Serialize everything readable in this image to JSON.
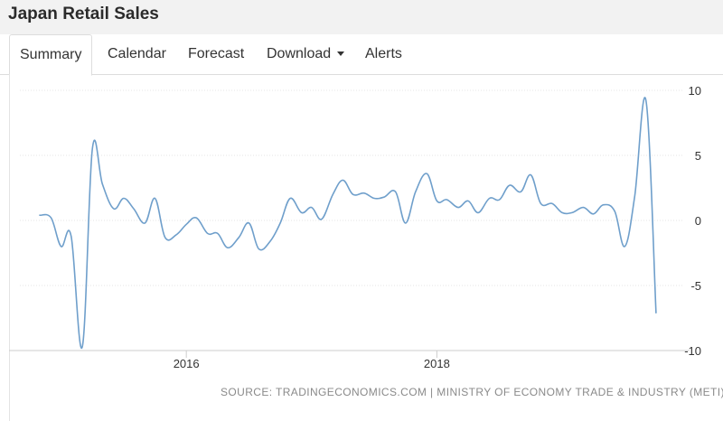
{
  "header": {
    "title": "Japan Retail Sales"
  },
  "tabs": [
    {
      "label": "Summary",
      "active": true
    },
    {
      "label": "Calendar"
    },
    {
      "label": "Forecast"
    },
    {
      "label": "Download",
      "has_dropdown": true
    },
    {
      "label": "Alerts"
    }
  ],
  "source_text": "SOURCE: TRADINGECONOMICS.COM | MINISTRY OF ECONOMY TRADE & INDUSTRY (METI)",
  "colors": {
    "line": "#6f9fcb",
    "grid": "#e6e6e6",
    "axis": "#cccccc",
    "header_bg": "#f2f2f2"
  },
  "chart_data": {
    "type": "line",
    "title": "",
    "xlabel": "",
    "ylabel": "",
    "ylim": [
      -10,
      10
    ],
    "y_ticks": [
      10,
      5,
      0,
      -5,
      -10
    ],
    "y_tick_labels": [
      "10",
      "5",
      "0",
      "-5",
      "-10"
    ],
    "x_range": [
      2014.83,
      2019.83
    ],
    "x_ticks": [
      2016,
      2018
    ],
    "x_tick_labels": [
      "2016",
      "2018"
    ],
    "grid": "horizontal dotted",
    "legend": "none",
    "series": [
      {
        "points": [
          [
            2014.83,
            0.4
          ],
          [
            2014.92,
            0.2
          ],
          [
            2015.0,
            -2.0
          ],
          [
            2015.08,
            -1.2
          ],
          [
            2015.17,
            -9.7
          ],
          [
            2015.25,
            5.5
          ],
          [
            2015.33,
            2.8
          ],
          [
            2015.42,
            0.9
          ],
          [
            2015.5,
            1.7
          ],
          [
            2015.58,
            0.9
          ],
          [
            2015.67,
            -0.2
          ],
          [
            2015.75,
            1.7
          ],
          [
            2015.83,
            -1.3
          ],
          [
            2015.92,
            -1.1
          ],
          [
            2016.0,
            -0.3
          ],
          [
            2016.08,
            0.2
          ],
          [
            2016.17,
            -1.0
          ],
          [
            2016.25,
            -1.0
          ],
          [
            2016.33,
            -2.1
          ],
          [
            2016.42,
            -1.3
          ],
          [
            2016.5,
            -0.2
          ],
          [
            2016.58,
            -2.2
          ],
          [
            2016.67,
            -1.6
          ],
          [
            2016.75,
            -0.2
          ],
          [
            2016.83,
            1.7
          ],
          [
            2016.92,
            0.6
          ],
          [
            2017.0,
            1.0
          ],
          [
            2017.08,
            0.1
          ],
          [
            2017.17,
            2.0
          ],
          [
            2017.25,
            3.1
          ],
          [
            2017.33,
            2.0
          ],
          [
            2017.42,
            2.1
          ],
          [
            2017.5,
            1.7
          ],
          [
            2017.58,
            1.8
          ],
          [
            2017.67,
            2.2
          ],
          [
            2017.75,
            -0.2
          ],
          [
            2017.83,
            2.2
          ],
          [
            2017.92,
            3.6
          ],
          [
            2018.0,
            1.5
          ],
          [
            2018.08,
            1.6
          ],
          [
            2018.17,
            1.0
          ],
          [
            2018.25,
            1.5
          ],
          [
            2018.33,
            0.6
          ],
          [
            2018.42,
            1.7
          ],
          [
            2018.5,
            1.6
          ],
          [
            2018.58,
            2.7
          ],
          [
            2018.67,
            2.2
          ],
          [
            2018.75,
            3.5
          ],
          [
            2018.83,
            1.3
          ],
          [
            2018.92,
            1.3
          ],
          [
            2019.0,
            0.6
          ],
          [
            2019.08,
            0.6
          ],
          [
            2019.17,
            1.0
          ],
          [
            2019.25,
            0.5
          ],
          [
            2019.33,
            1.2
          ],
          [
            2019.42,
            0.7
          ],
          [
            2019.5,
            -2.0
          ],
          [
            2019.58,
            1.9
          ],
          [
            2019.67,
            9.2
          ],
          [
            2019.75,
            -7.1
          ]
        ]
      }
    ]
  }
}
